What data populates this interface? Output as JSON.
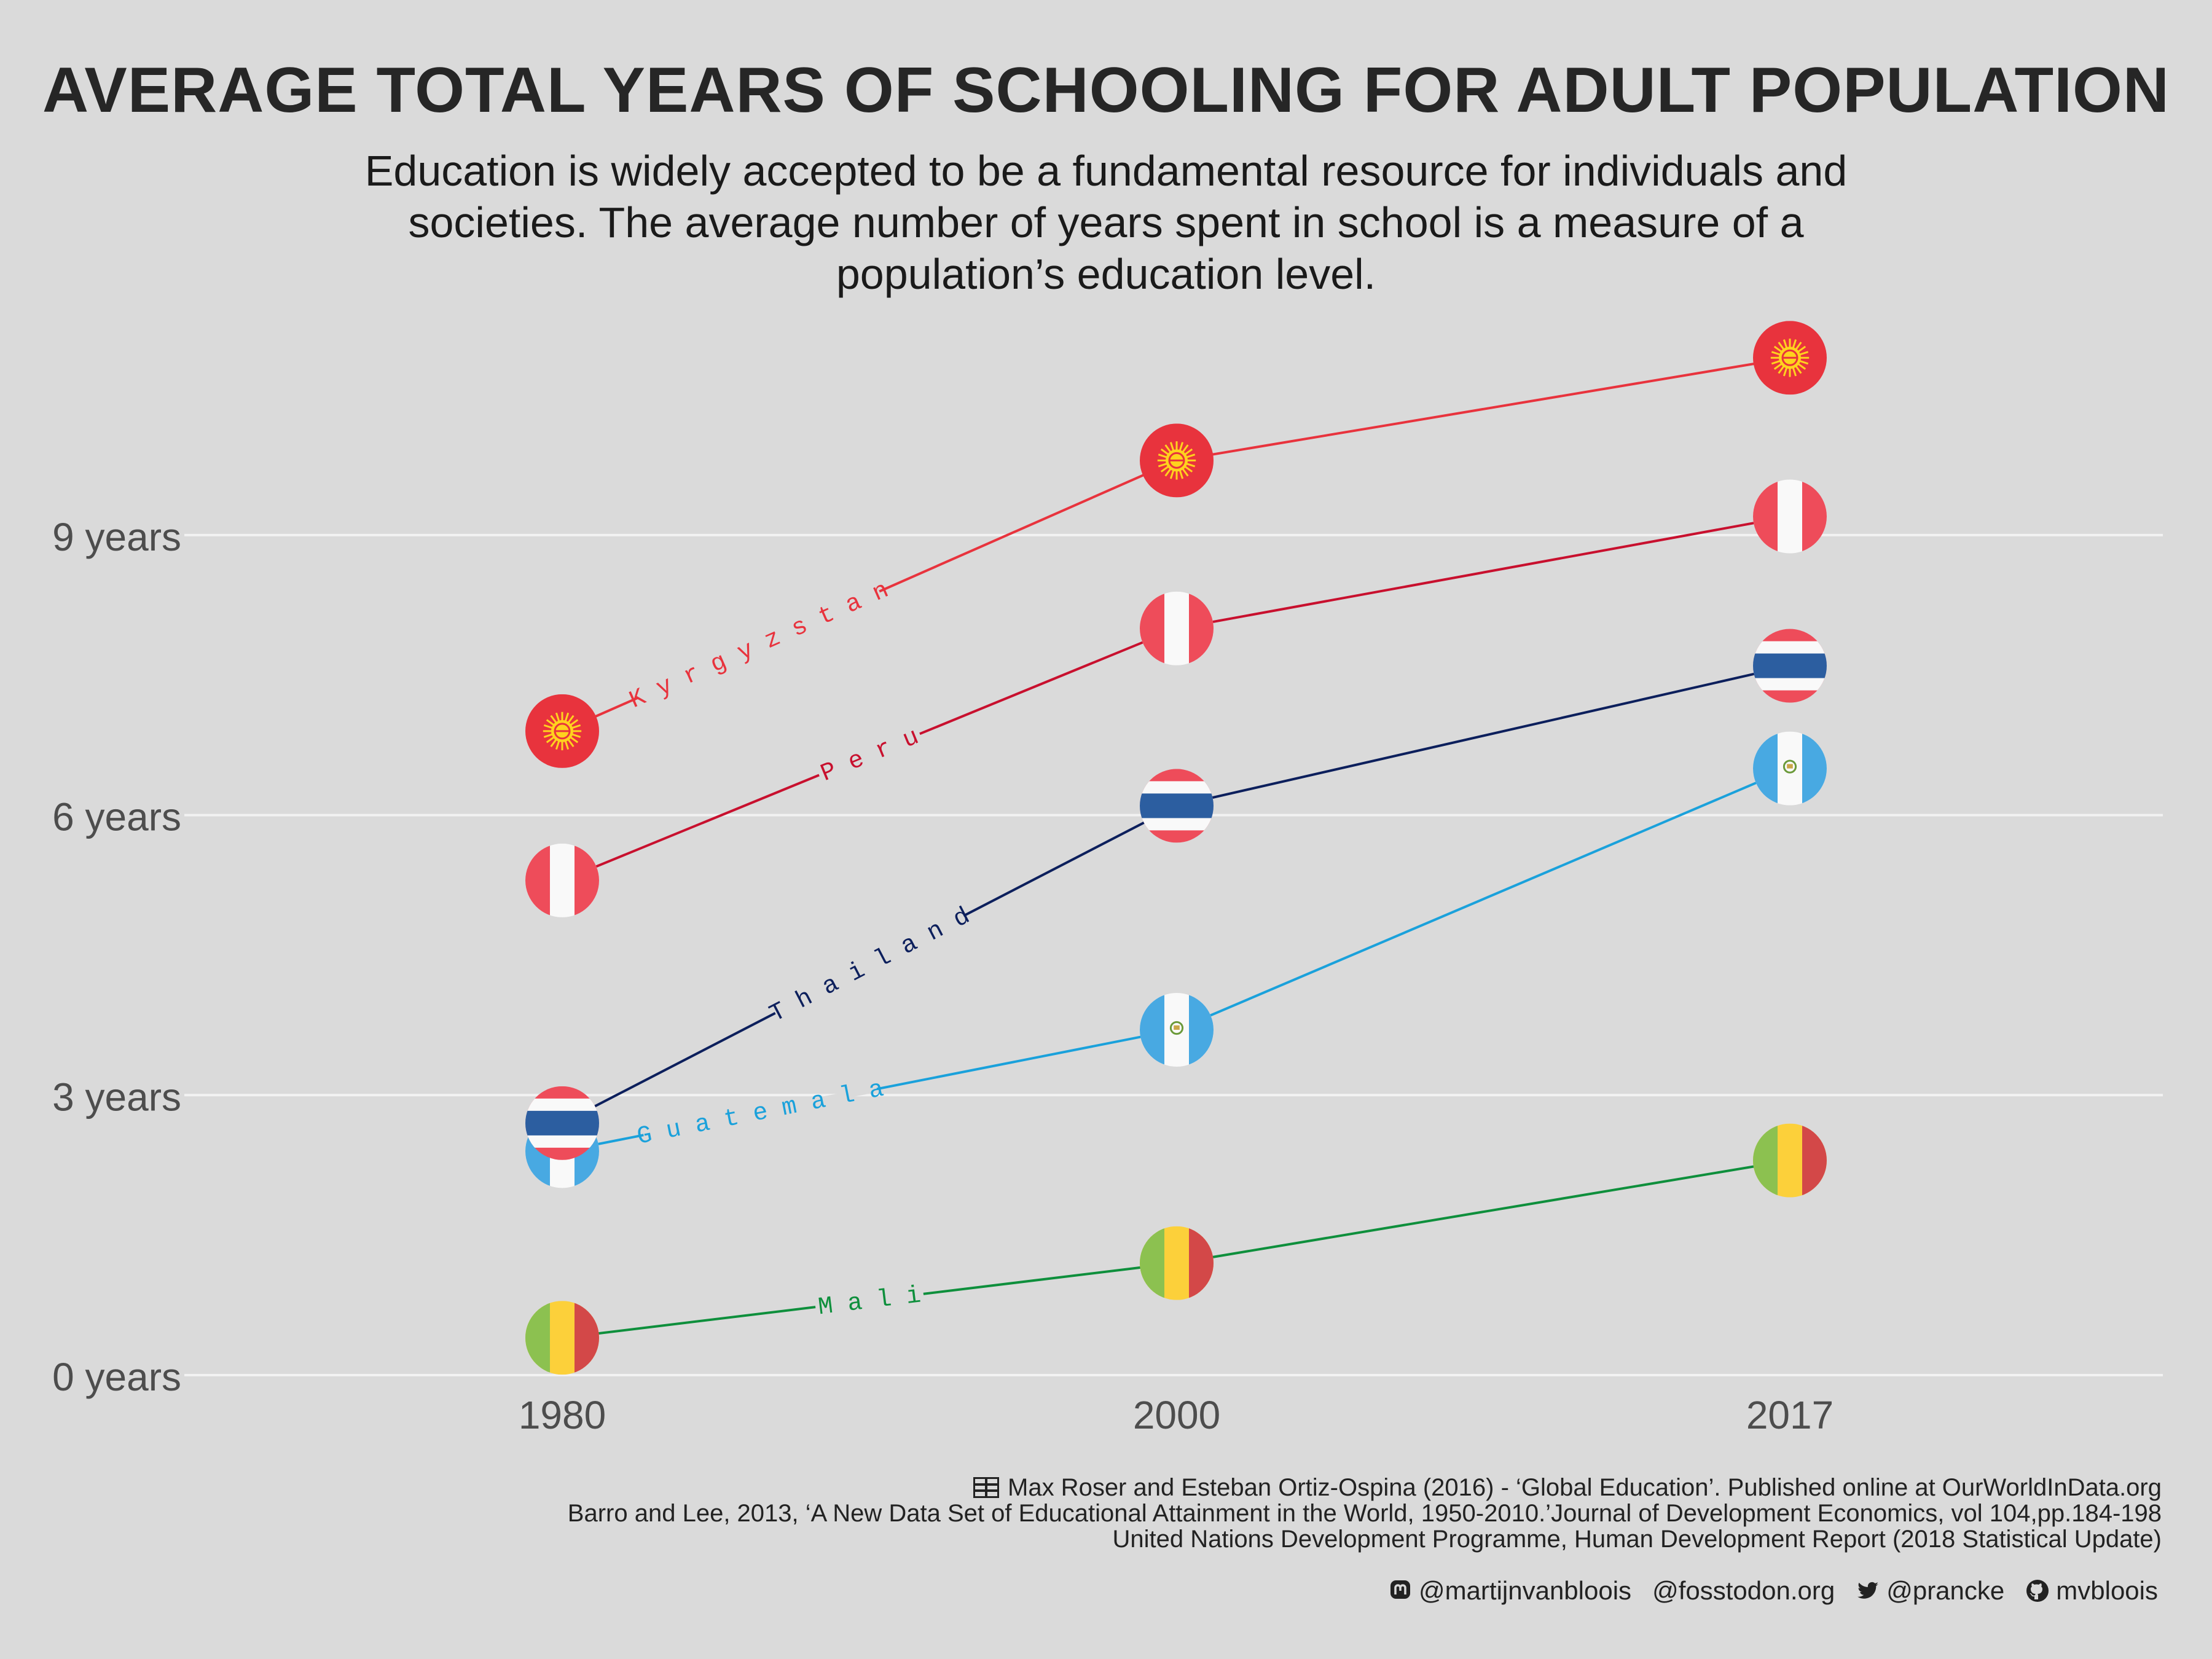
{
  "title": "AVERAGE TOTAL YEARS OF SCHOOLING FOR ADULT POPULATION",
  "subtitle": "Education is widely accepted to be a fundamental resource for individuals and societies. The average number of years spent in school is a measure of a population’s education level.",
  "chart_data": {
    "type": "line",
    "title": "AVERAGE TOTAL YEARS OF SCHOOLING FOR ADULT POPULATION",
    "xlabel": "",
    "ylabel": "",
    "x": [
      "1980",
      "2000",
      "2017"
    ],
    "ylim": [
      0,
      12
    ],
    "yticks": [
      0,
      3,
      6,
      9
    ],
    "ytick_labels": [
      "0 years",
      "3 years",
      "6 years",
      "9 years"
    ],
    "grid": true,
    "series": [
      {
        "name": "Kyrgyzstan",
        "label": "K y r g y z s t a n",
        "color": "#e8333d",
        "values": [
          6.9,
          9.8,
          10.9
        ]
      },
      {
        "name": "Peru",
        "label": "P e r u",
        "color": "#c8102e",
        "values": [
          5.3,
          8.0,
          9.2
        ]
      },
      {
        "name": "Thailand",
        "label": "T h a i l a n d",
        "color": "#0c1f5c",
        "values": [
          2.7,
          6.1,
          7.6
        ]
      },
      {
        "name": "Guatemala",
        "label": "G u a t e m a l a",
        "color": "#1aa1db",
        "values": [
          2.4,
          3.7,
          6.5
        ]
      },
      {
        "name": "Mali",
        "label": "M a l i",
        "color": "#0e8f3c",
        "values": [
          0.4,
          1.2,
          2.3
        ]
      }
    ]
  },
  "flags": {
    "Kyrgyzstan": "kyrgyzstan-flag",
    "Peru": "peru-flag",
    "Thailand": "thailand-flag",
    "Guatemala": "guatemala-flag",
    "Mali": "mali-flag"
  },
  "sources": [
    "Max Roser and Esteban Ortiz-Ospina (2016) - ‘Global Education’. Published online at OurWorldInData.org",
    "Barro and Lee, 2013, ‘A New Data Set of Educational Attainment in the World, 1950-2010.’Journal of Development Economics, vol 104,pp.184-198",
    "United Nations Development Programme, Human Development Report (2018 Statistical Update)"
  ],
  "social": {
    "mastodon_handle": "@martijnvanbloois",
    "mastodon_server": "@fosstodon.org",
    "twitter_handle": "@prancke",
    "github_handle": "mvbloois"
  }
}
